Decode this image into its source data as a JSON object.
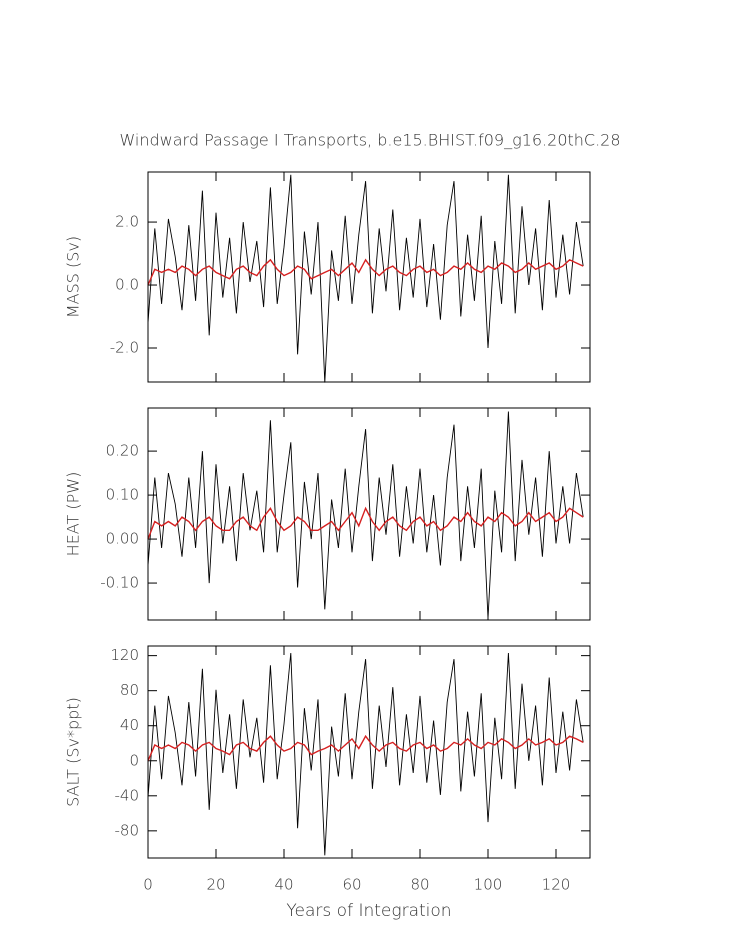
{
  "chart_data": [
    {
      "type": "line",
      "title": "Windward Passage I Transports, b.e15.BHIST.f09_g16.20thC.28",
      "y_label": "MASS (Sv)",
      "x": [
        0,
        2,
        4,
        6,
        8,
        10,
        12,
        14,
        16,
        18,
        20,
        22,
        24,
        26,
        28,
        30,
        32,
        34,
        36,
        38,
        40,
        42,
        44,
        46,
        48,
        50,
        52,
        54,
        56,
        58,
        60,
        62,
        64,
        66,
        68,
        70,
        72,
        74,
        76,
        78,
        80,
        82,
        84,
        86,
        88,
        90,
        92,
        94,
        96,
        98,
        100,
        102,
        104,
        106,
        108,
        110,
        112,
        114,
        116,
        118,
        120,
        122,
        124,
        126,
        128
      ],
      "series": [
        {
          "color": "#000000",
          "values": [
            -1.2,
            1.8,
            -0.6,
            2.1,
            0.9,
            -0.8,
            1.9,
            -0.5,
            3.0,
            -1.6,
            2.3,
            -0.4,
            1.5,
            -0.9,
            2.0,
            0.1,
            1.4,
            -0.7,
            3.1,
            -0.6,
            1.2,
            3.5,
            -2.2,
            1.7,
            -0.3,
            2.0,
            -3.1,
            1.1,
            -0.5,
            2.2,
            -0.6,
            1.6,
            3.3,
            -0.9,
            1.8,
            -0.2,
            2.4,
            -0.8,
            1.5,
            -0.4,
            2.1,
            -0.7,
            1.3,
            -1.1,
            1.9,
            3.3,
            -1.0,
            1.6,
            -0.5,
            2.2,
            -2.0,
            1.4,
            -0.6,
            3.5,
            -0.9,
            2.5,
            0.0,
            1.8,
            -0.8,
            2.7,
            -0.4,
            1.6,
            -0.3,
            2.0,
            0.6
          ]
        },
        {
          "color": "#d62020",
          "values": [
            0.0,
            0.5,
            0.4,
            0.5,
            0.4,
            0.6,
            0.5,
            0.3,
            0.5,
            0.6,
            0.4,
            0.3,
            0.2,
            0.5,
            0.6,
            0.4,
            0.3,
            0.6,
            0.8,
            0.5,
            0.3,
            0.4,
            0.6,
            0.5,
            0.2,
            0.3,
            0.4,
            0.5,
            0.3,
            0.5,
            0.7,
            0.4,
            0.8,
            0.5,
            0.3,
            0.5,
            0.6,
            0.4,
            0.3,
            0.5,
            0.6,
            0.4,
            0.5,
            0.3,
            0.4,
            0.6,
            0.5,
            0.7,
            0.5,
            0.4,
            0.6,
            0.5,
            0.7,
            0.6,
            0.4,
            0.5,
            0.7,
            0.5,
            0.6,
            0.7,
            0.5,
            0.6,
            0.8,
            0.7,
            0.6
          ]
        }
      ],
      "xlim": [
        0,
        130
      ],
      "xticks": [
        0,
        20,
        40,
        60,
        80,
        100,
        120
      ],
      "ylim": [
        -3.08,
        3.59
      ],
      "yticks": [
        {
          "value": -2,
          "label": "-2.0"
        },
        {
          "value": 0,
          "label": "0.0"
        },
        {
          "value": 2,
          "label": "2.0"
        }
      ]
    },
    {
      "type": "line",
      "y_label": "HEAT (PW)",
      "x": [
        0,
        2,
        4,
        6,
        8,
        10,
        12,
        14,
        16,
        18,
        20,
        22,
        24,
        26,
        28,
        30,
        32,
        34,
        36,
        38,
        40,
        42,
        44,
        46,
        48,
        50,
        52,
        54,
        56,
        58,
        60,
        62,
        64,
        66,
        68,
        70,
        72,
        74,
        76,
        78,
        80,
        82,
        84,
        86,
        88,
        90,
        92,
        94,
        96,
        98,
        100,
        102,
        104,
        106,
        108,
        110,
        112,
        114,
        116,
        118,
        120,
        122,
        124,
        126,
        128
      ],
      "series": [
        {
          "color": "#000000",
          "values": [
            -0.06,
            0.14,
            -0.02,
            0.15,
            0.08,
            -0.04,
            0.14,
            -0.02,
            0.2,
            -0.1,
            0.17,
            -0.01,
            0.12,
            -0.05,
            0.15,
            0.02,
            0.11,
            -0.03,
            0.27,
            -0.03,
            0.1,
            0.22,
            -0.11,
            0.13,
            0.0,
            0.15,
            -0.16,
            0.09,
            -0.02,
            0.16,
            -0.03,
            0.12,
            0.25,
            -0.05,
            0.14,
            0.01,
            0.17,
            -0.04,
            0.12,
            -0.01,
            0.16,
            -0.03,
            0.1,
            -0.06,
            0.14,
            0.26,
            -0.05,
            0.12,
            -0.02,
            0.16,
            -0.18,
            0.11,
            -0.03,
            0.29,
            -0.05,
            0.18,
            0.01,
            0.14,
            -0.04,
            0.2,
            -0.01,
            0.12,
            -0.01,
            0.15,
            0.05
          ]
        },
        {
          "color": "#d62020",
          "values": [
            0.0,
            0.04,
            0.03,
            0.04,
            0.03,
            0.05,
            0.04,
            0.02,
            0.04,
            0.05,
            0.03,
            0.02,
            0.02,
            0.04,
            0.05,
            0.03,
            0.02,
            0.05,
            0.07,
            0.04,
            0.02,
            0.03,
            0.05,
            0.04,
            0.02,
            0.02,
            0.03,
            0.04,
            0.02,
            0.04,
            0.06,
            0.03,
            0.07,
            0.04,
            0.02,
            0.04,
            0.05,
            0.03,
            0.02,
            0.04,
            0.05,
            0.03,
            0.04,
            0.02,
            0.03,
            0.05,
            0.04,
            0.06,
            0.04,
            0.03,
            0.05,
            0.04,
            0.06,
            0.05,
            0.03,
            0.04,
            0.06,
            0.04,
            0.05,
            0.06,
            0.04,
            0.05,
            0.07,
            0.06,
            0.05
          ]
        }
      ],
      "xlim": [
        0,
        130
      ],
      "xticks": [
        0,
        20,
        40,
        60,
        80,
        100,
        120
      ],
      "ylim": [
        -0.184,
        0.298
      ],
      "yticks": [
        {
          "value": -0.1,
          "label": "-0.10"
        },
        {
          "value": 0,
          "label": "0.00"
        },
        {
          "value": 0.1,
          "label": "0.10"
        },
        {
          "value": 0.2,
          "label": "0.20"
        }
      ]
    },
    {
      "type": "line",
      "y_label": "SALT (Sv*ppt)",
      "x_label": "Years of Integration",
      "x": [
        0,
        2,
        4,
        6,
        8,
        10,
        12,
        14,
        16,
        18,
        20,
        22,
        24,
        26,
        28,
        30,
        32,
        34,
        36,
        38,
        40,
        42,
        44,
        46,
        48,
        50,
        52,
        54,
        56,
        58,
        60,
        62,
        64,
        66,
        68,
        70,
        72,
        74,
        76,
        78,
        80,
        82,
        84,
        86,
        88,
        90,
        92,
        94,
        96,
        98,
        100,
        102,
        104,
        106,
        108,
        110,
        112,
        114,
        116,
        118,
        120,
        122,
        124,
        126,
        128
      ],
      "series": [
        {
          "color": "#000000",
          "values": [
            -42,
            63,
            -21,
            74,
            32,
            -28,
            67,
            -18,
            105,
            -56,
            81,
            -14,
            53,
            -32,
            70,
            4,
            49,
            -25,
            109,
            -21,
            42,
            123,
            -77,
            60,
            -11,
            70,
            -108,
            39,
            -18,
            77,
            -21,
            56,
            116,
            -32,
            63,
            -7,
            84,
            -28,
            53,
            -14,
            74,
            -25,
            46,
            -39,
            67,
            116,
            -35,
            56,
            -18,
            77,
            -70,
            49,
            -21,
            123,
            -32,
            88,
            0,
            63,
            -28,
            95,
            -14,
            56,
            -11,
            70,
            21
          ]
        },
        {
          "color": "#d62020",
          "values": [
            0,
            18,
            14,
            18,
            14,
            21,
            18,
            11,
            18,
            21,
            14,
            11,
            7,
            18,
            21,
            14,
            11,
            21,
            28,
            18,
            11,
            14,
            21,
            18,
            7,
            11,
            14,
            18,
            11,
            18,
            25,
            14,
            28,
            18,
            11,
            18,
            21,
            14,
            11,
            18,
            21,
            14,
            18,
            11,
            14,
            21,
            18,
            25,
            18,
            14,
            21,
            18,
            25,
            21,
            14,
            18,
            25,
            18,
            21,
            25,
            18,
            21,
            28,
            25,
            21
          ]
        }
      ],
      "xlim": [
        0,
        130
      ],
      "xticks": [
        0,
        20,
        40,
        60,
        80,
        100,
        120
      ],
      "ylim": [
        -111,
        131
      ],
      "yticks": [
        -80,
        -40,
        0,
        40,
        80,
        120
      ]
    }
  ]
}
